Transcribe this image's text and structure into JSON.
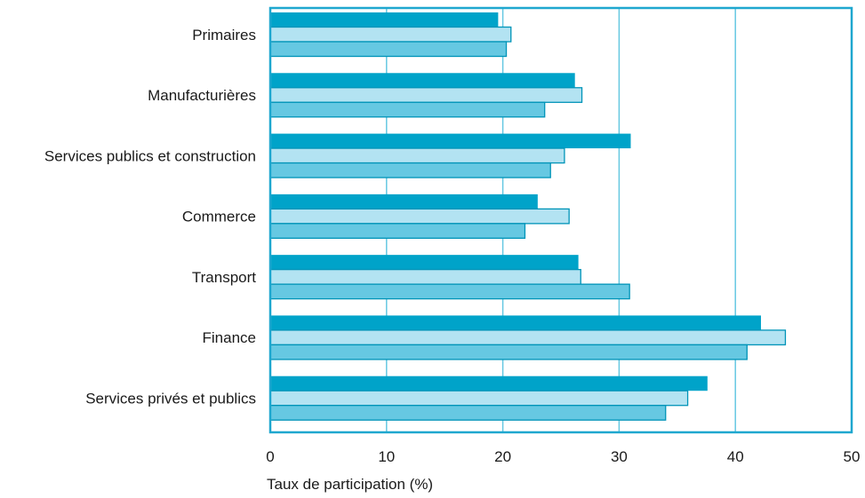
{
  "chart_data": {
    "type": "bar",
    "orientation": "horizontal",
    "categories": [
      "Primaires",
      "Manufacturières",
      "Services publics et construction",
      "Commerce",
      "Transport",
      "Finance",
      "Services privés et publics"
    ],
    "series": [
      {
        "values": [
          19.6,
          26.2,
          31.0,
          23.0,
          26.5,
          42.2,
          37.6
        ]
      },
      {
        "values": [
          20.7,
          26.8,
          25.3,
          25.7,
          26.7,
          44.3,
          35.9
        ]
      },
      {
        "values": [
          20.3,
          23.6,
          24.1,
          21.9,
          30.9,
          41.0,
          34.0
        ]
      }
    ],
    "xlim": [
      0,
      50
    ],
    "xticks": [
      "0",
      "10",
      "20",
      "30",
      "40",
      "50"
    ],
    "xlabel": "Taux de participation (%)",
    "ylabel": "",
    "title": "",
    "grid": "vertical",
    "legend": "none",
    "colors": {
      "series": [
        "#00a3c9",
        "#b3e3f2",
        "#66c8e2"
      ],
      "bar_stroke": "#0094b8",
      "frame": "#1fa7cf",
      "grid": "#66c8e2",
      "text": "#1a1a1a"
    }
  }
}
